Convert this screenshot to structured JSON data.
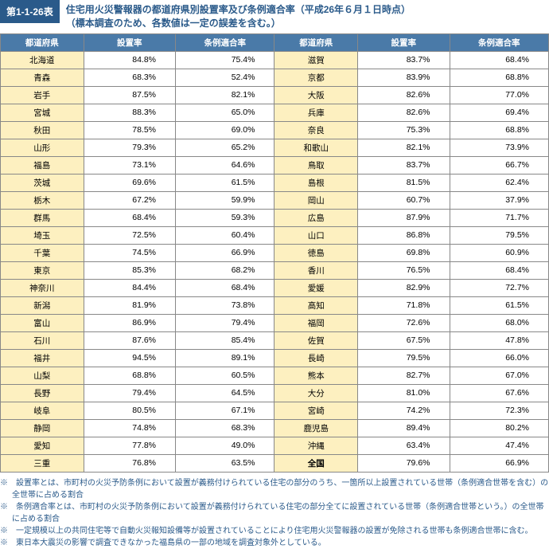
{
  "label": "第1-1-26表",
  "title_line1": "住宅用火災警報器の都道府県別設置率及び条例適合率（平成26年６月１日時点）",
  "title_line2": "（標本調査のため、各数値は一定の誤差を含む。）",
  "headers": {
    "pref": "都道府県",
    "rate1": "設置率",
    "rate2": "条例適合率"
  },
  "left": [
    {
      "p": "北海道",
      "r1": "84.8%",
      "r2": "75.4%"
    },
    {
      "p": "青森",
      "r1": "68.3%",
      "r2": "52.4%"
    },
    {
      "p": "岩手",
      "r1": "87.5%",
      "r2": "82.1%"
    },
    {
      "p": "宮城",
      "r1": "88.3%",
      "r2": "65.0%"
    },
    {
      "p": "秋田",
      "r1": "78.5%",
      "r2": "69.0%"
    },
    {
      "p": "山形",
      "r1": "79.3%",
      "r2": "65.2%"
    },
    {
      "p": "福島",
      "r1": "73.1%",
      "r2": "64.6%"
    },
    {
      "p": "茨城",
      "r1": "69.6%",
      "r2": "61.5%"
    },
    {
      "p": "栃木",
      "r1": "67.2%",
      "r2": "59.9%"
    },
    {
      "p": "群馬",
      "r1": "68.4%",
      "r2": "59.3%"
    },
    {
      "p": "埼玉",
      "r1": "72.5%",
      "r2": "60.4%"
    },
    {
      "p": "千葉",
      "r1": "74.5%",
      "r2": "66.9%"
    },
    {
      "p": "東京",
      "r1": "85.3%",
      "r2": "68.2%"
    },
    {
      "p": "神奈川",
      "r1": "84.4%",
      "r2": "68.4%"
    },
    {
      "p": "新潟",
      "r1": "81.9%",
      "r2": "73.8%"
    },
    {
      "p": "富山",
      "r1": "86.9%",
      "r2": "79.4%"
    },
    {
      "p": "石川",
      "r1": "87.6%",
      "r2": "85.4%"
    },
    {
      "p": "福井",
      "r1": "94.5%",
      "r2": "89.1%"
    },
    {
      "p": "山梨",
      "r1": "68.8%",
      "r2": "60.5%"
    },
    {
      "p": "長野",
      "r1": "79.4%",
      "r2": "64.5%"
    },
    {
      "p": "岐阜",
      "r1": "80.5%",
      "r2": "67.1%"
    },
    {
      "p": "静岡",
      "r1": "74.8%",
      "r2": "68.3%"
    },
    {
      "p": "愛知",
      "r1": "77.8%",
      "r2": "49.0%"
    },
    {
      "p": "三重",
      "r1": "76.8%",
      "r2": "63.5%"
    }
  ],
  "right": [
    {
      "p": "滋賀",
      "r1": "83.7%",
      "r2": "68.4%"
    },
    {
      "p": "京都",
      "r1": "83.9%",
      "r2": "68.8%"
    },
    {
      "p": "大阪",
      "r1": "82.6%",
      "r2": "77.0%"
    },
    {
      "p": "兵庫",
      "r1": "82.6%",
      "r2": "69.4%"
    },
    {
      "p": "奈良",
      "r1": "75.3%",
      "r2": "68.8%"
    },
    {
      "p": "和歌山",
      "r1": "82.1%",
      "r2": "73.9%"
    },
    {
      "p": "鳥取",
      "r1": "83.7%",
      "r2": "66.7%"
    },
    {
      "p": "島根",
      "r1": "81.5%",
      "r2": "62.4%"
    },
    {
      "p": "岡山",
      "r1": "60.7%",
      "r2": "37.9%"
    },
    {
      "p": "広島",
      "r1": "87.9%",
      "r2": "71.7%"
    },
    {
      "p": "山口",
      "r1": "86.8%",
      "r2": "79.5%"
    },
    {
      "p": "徳島",
      "r1": "69.8%",
      "r2": "60.9%"
    },
    {
      "p": "香川",
      "r1": "76.5%",
      "r2": "68.4%"
    },
    {
      "p": "愛媛",
      "r1": "82.9%",
      "r2": "72.7%"
    },
    {
      "p": "高知",
      "r1": "71.8%",
      "r2": "61.5%"
    },
    {
      "p": "福岡",
      "r1": "72.6%",
      "r2": "68.0%"
    },
    {
      "p": "佐賀",
      "r1": "67.5%",
      "r2": "47.8%"
    },
    {
      "p": "長崎",
      "r1": "79.5%",
      "r2": "66.0%"
    },
    {
      "p": "熊本",
      "r1": "82.7%",
      "r2": "67.0%"
    },
    {
      "p": "大分",
      "r1": "81.0%",
      "r2": "67.6%"
    },
    {
      "p": "宮崎",
      "r1": "74.2%",
      "r2": "72.3%"
    },
    {
      "p": "鹿児島",
      "r1": "89.4%",
      "r2": "80.2%"
    },
    {
      "p": "沖縄",
      "r1": "63.4%",
      "r2": "47.4%"
    },
    {
      "p": "全国",
      "r1": "79.6%",
      "r2": "66.9%",
      "total": true
    }
  ],
  "notes": [
    "※　設置率とは、市町村の火災予防条例において設置が義務付けられている住宅の部分のうち、一箇所以上設置されている世帯（条例適合世帯を含む）の全世帯に占める割合",
    "※　条例適合率とは、市町村の火災予防条例において設置が義務付けられている住宅の部分全てに設置されている世帯（条例適合世帯という。）の全世帯に占める割合",
    "※　一定規模以上の共同住宅等で自動火災報知設備等が設置されていることにより住宅用火災警報器の設置が免除される世帯も条例適合世帯に含む。",
    "※　東日本大震災の影響で調査できなかった福島県の一部の地域を調査対象外としている。"
  ]
}
